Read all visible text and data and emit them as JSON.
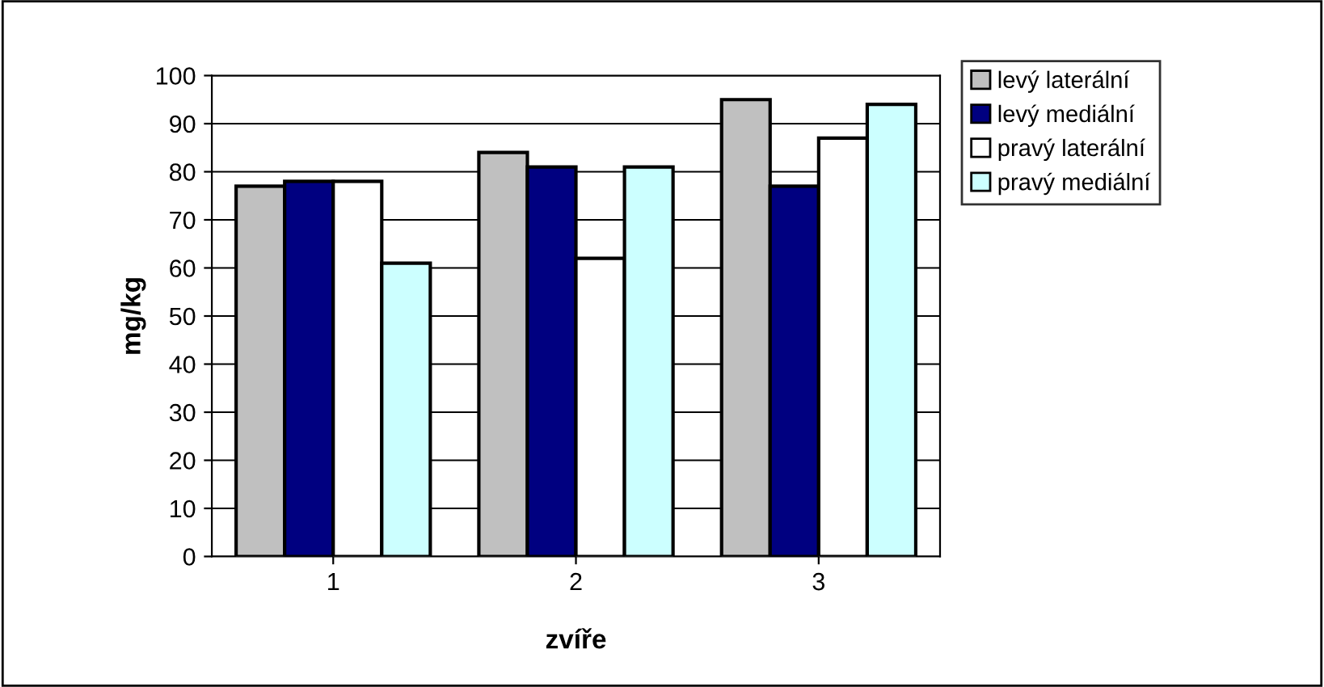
{
  "chart_data": {
    "type": "bar",
    "xlabel": "zvíře",
    "ylabel": "mg/kg",
    "categories": [
      "1",
      "2",
      "3"
    ],
    "series": [
      {
        "name": "levý laterální",
        "color": "#c0c0c0",
        "values": [
          77,
          84,
          95
        ]
      },
      {
        "name": "levý mediální",
        "color": "#000080",
        "values": [
          78,
          81,
          77
        ]
      },
      {
        "name": "pravý laterální",
        "color": "#ffffff",
        "values": [
          78,
          62,
          87
        ]
      },
      {
        "name": "pravý mediální",
        "color": "#ccffff",
        "values": [
          61,
          81,
          94
        ]
      }
    ],
    "ylim": [
      0,
      100
    ],
    "yticks": [
      0,
      10,
      20,
      30,
      40,
      50,
      60,
      70,
      80,
      90,
      100
    ],
    "grid": "y",
    "legend": "right"
  }
}
